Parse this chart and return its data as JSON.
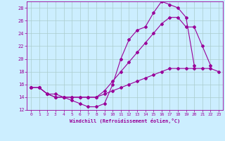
{
  "xlabel": "Windchill (Refroidissement éolien,°C)",
  "bg_color": "#cceeff",
  "grid_color": "#aacccc",
  "line_color": "#990099",
  "xlim": [
    -0.5,
    23.5
  ],
  "ylim": [
    12,
    29
  ],
  "yticks": [
    12,
    14,
    16,
    18,
    20,
    22,
    24,
    26,
    28
  ],
  "xticks": [
    0,
    1,
    2,
    3,
    4,
    5,
    6,
    7,
    8,
    9,
    10,
    11,
    12,
    13,
    14,
    15,
    16,
    17,
    18,
    19,
    20,
    21,
    22,
    23
  ],
  "top_x": [
    0,
    1,
    2,
    3,
    4,
    5,
    6,
    7,
    8,
    9,
    10,
    11,
    12,
    13,
    14,
    15,
    16,
    17,
    18,
    19,
    20
  ],
  "top_y": [
    15.5,
    15.5,
    14.5,
    14.0,
    14.0,
    13.5,
    13.0,
    12.5,
    12.5,
    13.0,
    16.0,
    20.0,
    23.0,
    24.5,
    25.0,
    27.2,
    29.0,
    28.5,
    28.0,
    26.5,
    19.0
  ],
  "mid_x": [
    0,
    1,
    2,
    3,
    4,
    5,
    6,
    7,
    8,
    9,
    10,
    11,
    12,
    13,
    14,
    15,
    16,
    17,
    18,
    19,
    20,
    21,
    22
  ],
  "mid_y": [
    15.5,
    15.5,
    14.5,
    14.5,
    14.0,
    14.0,
    14.0,
    14.0,
    14.0,
    15.0,
    16.5,
    18.0,
    19.5,
    21.0,
    22.5,
    24.0,
    25.5,
    26.5,
    26.5,
    25.0,
    25.0,
    22.0,
    19.0
  ],
  "bot_x": [
    0,
    1,
    2,
    3,
    4,
    5,
    6,
    7,
    8,
    9,
    10,
    11,
    12,
    13,
    14,
    15,
    16,
    17,
    18,
    19,
    20,
    21,
    22,
    23
  ],
  "bot_y": [
    15.5,
    15.5,
    14.5,
    14.0,
    14.0,
    14.0,
    14.0,
    14.0,
    14.0,
    14.5,
    15.0,
    15.5,
    16.0,
    16.5,
    17.0,
    17.5,
    18.0,
    18.5,
    18.5,
    18.5,
    18.5,
    18.5,
    18.5,
    18.0
  ]
}
